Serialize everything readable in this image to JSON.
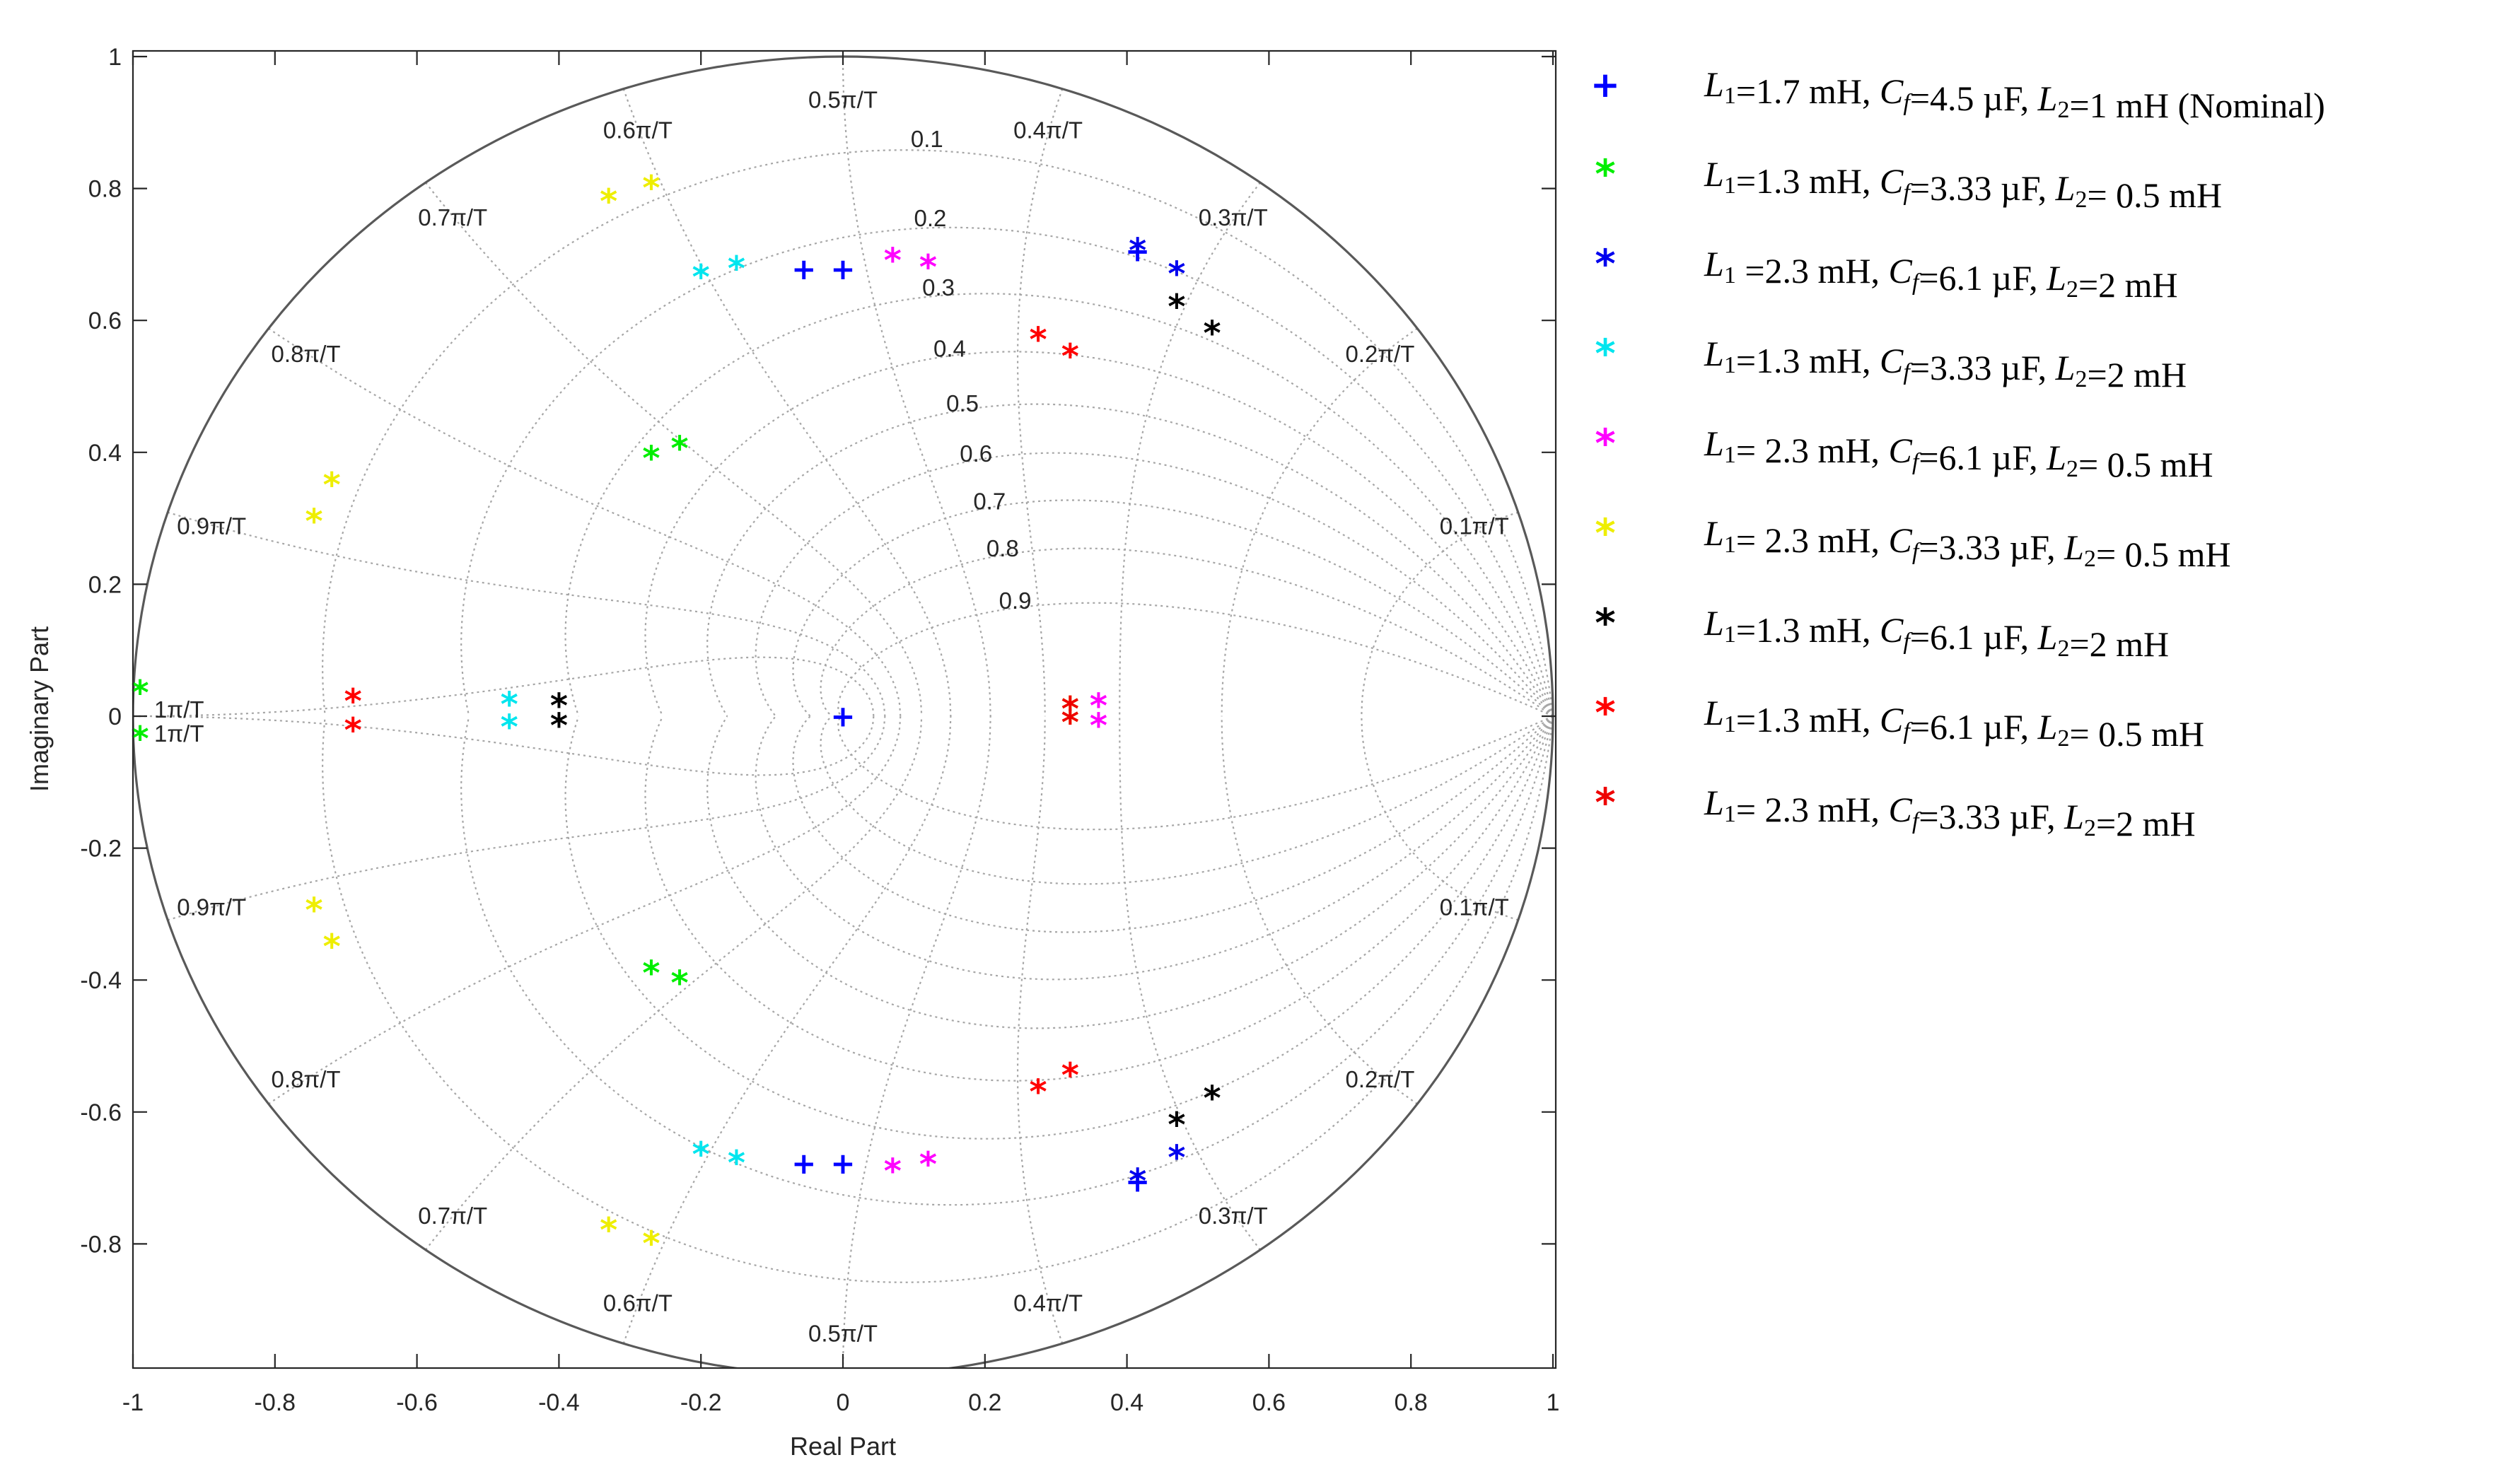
{
  "chart_data": {
    "type": "scatter",
    "title": "",
    "xlabel": "Real Part",
    "ylabel": "Imaginary Part",
    "xlim": [
      -1,
      1
    ],
    "ylim": [
      -1,
      1
    ],
    "xticks": [
      "-1",
      "-0.8",
      "-0.6",
      "-0.4",
      "-0.2",
      "0",
      "0.2",
      "0.4",
      "0.6",
      "0.8",
      "1"
    ],
    "yticks": [
      "-0.8",
      "-0.6",
      "-0.4",
      "-0.2",
      "0",
      "0.2",
      "0.4",
      "0.6",
      "0.8",
      "1"
    ],
    "grid": "zgrid",
    "damping_labels": [
      "0.1",
      "0.2",
      "0.3",
      "0.4",
      "0.5",
      "0.6",
      "0.7",
      "0.8",
      "0.9"
    ],
    "freq_labels": [
      "0.1π/T",
      "0.2π/T",
      "0.3π/T",
      "0.4π/T",
      "0.5π/T",
      "0.6π/T",
      "0.7π/T",
      "0.8π/T",
      "0.9π/T",
      "1π/T"
    ],
    "series": [
      {
        "name": "L1=1.7 mH, Cf=4.5 µF, L2=1 mH (Nominal)",
        "marker": "+",
        "color": "#0000ff",
        "points": [
          [
            0,
            0
          ],
          [
            -0.055,
            0.678
          ],
          [
            -0.055,
            -0.678
          ],
          [
            0,
            0.678
          ],
          [
            0,
            -0.678
          ],
          [
            0.415,
            0.705
          ],
          [
            0.415,
            -0.705
          ]
        ]
      },
      {
        "name": "L1=1.3 mH, Cf=3.33 µF, L2= 0.5 mH",
        "marker": "*",
        "color": "#00ee00",
        "points": [
          [
            -0.27,
            0.39
          ],
          [
            -0.27,
            -0.39
          ],
          [
            -0.23,
            0.405
          ],
          [
            -0.23,
            -0.405
          ],
          [
            -0.99,
            0.035
          ],
          [
            -0.99,
            -0.035
          ]
        ]
      },
      {
        "name": "L1 =2.3 mH, Cf=6.1 µF, L2=2 mH",
        "marker": "*",
        "color": "#0000ee",
        "points": [
          [
            0.415,
            0.705
          ],
          [
            0.415,
            -0.705
          ],
          [
            0.47,
            0.67
          ],
          [
            0.47,
            -0.67
          ]
        ]
      },
      {
        "name": "L1=1.3 mH, Cf=3.33 µF, L2=2 mH",
        "marker": "*",
        "color": "#00e5ee",
        "points": [
          [
            -0.2,
            0.665
          ],
          [
            -0.2,
            -0.665
          ],
          [
            -0.15,
            0.678
          ],
          [
            -0.15,
            -0.678
          ],
          [
            -0.47,
            0.017
          ],
          [
            -0.47,
            -0.017
          ]
        ]
      },
      {
        "name": "L1= 2.3 mH, Cf=6.1 µF, L2= 0.5 mH",
        "marker": "*",
        "color": "#ff00ff",
        "points": [
          [
            0.07,
            0.69
          ],
          [
            0.07,
            -0.69
          ],
          [
            0.12,
            0.68
          ],
          [
            0.12,
            -0.68
          ],
          [
            0.36,
            0.015
          ],
          [
            0.36,
            -0.015
          ]
        ]
      },
      {
        "name": "L1= 2.3 mH, Cf=3.33 µF, L2= 0.5 mH",
        "marker": "*",
        "color": "#eeee00",
        "points": [
          [
            -0.745,
            0.295
          ],
          [
            -0.745,
            -0.295
          ],
          [
            -0.72,
            0.35
          ],
          [
            -0.72,
            -0.35
          ],
          [
            -0.33,
            0.78
          ],
          [
            -0.33,
            -0.78
          ],
          [
            -0.27,
            0.8
          ],
          [
            -0.27,
            -0.8
          ],
          [
            0.32,
            0.01
          ],
          [
            0.32,
            -0.01
          ]
        ]
      },
      {
        "name": "L1=1.3 mH, Cf=6.1 µF, L2=2 mH",
        "marker": "*",
        "color": "#000000",
        "points": [
          [
            0.47,
            0.62
          ],
          [
            0.47,
            -0.62
          ],
          [
            0.52,
            0.58
          ],
          [
            0.52,
            -0.58
          ],
          [
            -0.4,
            0.015
          ],
          [
            -0.4,
            -0.015
          ]
        ]
      },
      {
        "name": "L1=1.3 mH, Cf=6.1 µF, L2= 0.5 mH",
        "marker": "*",
        "color": "#ff0000",
        "points": [
          [
            0.275,
            0.57
          ],
          [
            0.275,
            -0.57
          ],
          [
            0.32,
            0.545
          ],
          [
            0.32,
            -0.545
          ],
          [
            -0.69,
            0.022
          ],
          [
            -0.69,
            -0.022
          ]
        ]
      },
      {
        "name": "L1= 2.3 mH, Cf=3.33 µF, L2=2 mH",
        "marker": "*",
        "color": "#ee0000",
        "points": [
          [
            0.32,
            0.01
          ],
          [
            0.32,
            -0.01
          ]
        ]
      }
    ],
    "legend_placement": "right"
  },
  "legend_items": [
    {
      "sym": "+",
      "color": "#0000ff",
      "l1": "=1.7 mH,",
      "cf": "=4.5 µF,",
      "l2": "=1 mH (Nominal)"
    },
    {
      "sym": "*",
      "color": "#00ee00",
      "l1": "=1.3 mH,",
      "cf": "=3.33 µF,",
      "l2": "= 0.5 mH"
    },
    {
      "sym": "*",
      "color": "#0000ee",
      "l1": " =2.3 mH,",
      "cf": "=6.1 µF,",
      "l2": "=2 mH"
    },
    {
      "sym": "*",
      "color": "#00e5ee",
      "l1": "=1.3 mH,",
      "cf": "=3.33 µF,",
      "l2": "=2 mH"
    },
    {
      "sym": "*",
      "color": "#ff00ff",
      "l1": "= 2.3 mH,",
      "cf": "=6.1 µF,",
      "l2": "= 0.5 mH"
    },
    {
      "sym": "*",
      "color": "#eeee00",
      "l1": "= 2.3 mH,",
      "cf": "=3.33 µF,",
      "l2": "= 0.5 mH"
    },
    {
      "sym": "*",
      "color": "#000000",
      "l1": "=1.3 mH,",
      "cf": "=6.1 µF,",
      "l2": "=2 mH"
    },
    {
      "sym": "*",
      "color": "#ff0000",
      "l1": "=1.3 mH,",
      "cf": "=6.1 µF,",
      "l2": "= 0.5 mH"
    },
    {
      "sym": "*",
      "color": "#ee0000",
      "l1": "= 2.3 mH,",
      "cf": "=3.33 µF,",
      "l2": "=2 mH"
    }
  ],
  "legend_symbols": {
    "L": "L",
    "C": "C",
    "f": "f",
    "sub1": "1",
    "sub2": "2"
  }
}
